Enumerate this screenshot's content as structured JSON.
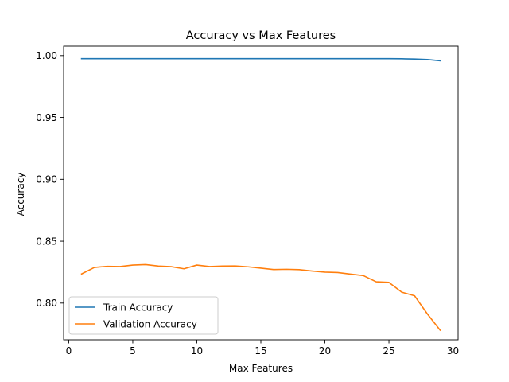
{
  "chart_data": {
    "type": "line",
    "title": "Accuracy vs Max Features",
    "xlabel": "Max Features",
    "ylabel": "Accuracy",
    "xlim": [
      -0.4,
      30.4
    ],
    "ylim": [
      0.7703,
      1.0076
    ],
    "xticks": [
      0,
      5,
      10,
      15,
      20,
      25,
      30
    ],
    "xtick_labels": [
      "0",
      "5",
      "10",
      "15",
      "20",
      "25",
      "30"
    ],
    "yticks": [
      0.8,
      0.85,
      0.9,
      0.95,
      1.0
    ],
    "ytick_labels": [
      "0.80",
      "0.85",
      "0.90",
      "0.95",
      "1.00"
    ],
    "grid": false,
    "legend_position": "lower-left",
    "x": [
      1,
      2,
      3,
      4,
      5,
      6,
      7,
      8,
      9,
      10,
      11,
      12,
      13,
      14,
      15,
      16,
      17,
      18,
      19,
      20,
      21,
      22,
      23,
      24,
      25,
      26,
      27,
      28,
      29
    ],
    "series": [
      {
        "name": "Train Accuracy",
        "color": "#1f77b4",
        "values": [
          0.9975,
          0.9975,
          0.9975,
          0.9975,
          0.9975,
          0.9975,
          0.9975,
          0.9975,
          0.9975,
          0.9975,
          0.9975,
          0.9975,
          0.9975,
          0.9975,
          0.9975,
          0.9975,
          0.9975,
          0.9975,
          0.9975,
          0.9975,
          0.9975,
          0.9975,
          0.9975,
          0.9975,
          0.9975,
          0.9974,
          0.9972,
          0.9968,
          0.9958
        ]
      },
      {
        "name": "Validation Accuracy",
        "color": "#ff7f0e",
        "values": [
          0.8235,
          0.8288,
          0.8297,
          0.8295,
          0.8307,
          0.8311,
          0.8299,
          0.8294,
          0.8277,
          0.8307,
          0.8295,
          0.8299,
          0.83,
          0.8293,
          0.8282,
          0.8271,
          0.8273,
          0.827,
          0.8259,
          0.825,
          0.8247,
          0.8234,
          0.8222,
          0.8172,
          0.8167,
          0.8088,
          0.8059,
          0.7912,
          0.778
        ]
      }
    ]
  }
}
